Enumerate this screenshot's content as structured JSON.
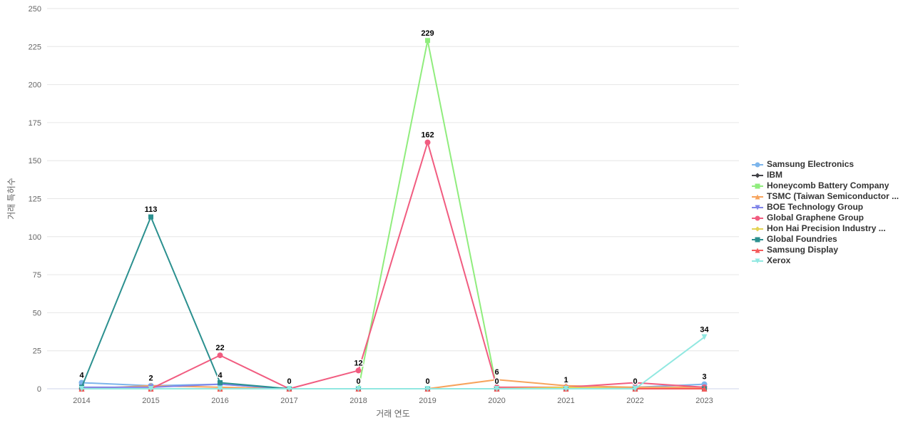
{
  "chart_data": {
    "type": "line",
    "title": "",
    "xlabel": "거래 연도",
    "ylabel": "거래 특허수",
    "x_categories": [
      "2014",
      "2015",
      "2016",
      "2017",
      "2018",
      "2019",
      "2020",
      "2021",
      "2022",
      "2023"
    ],
    "ylim": [
      0,
      250
    ],
    "ytick_step": 25,
    "grid": true,
    "legend_position": "right",
    "series": [
      {
        "name": "Samsung Electronics",
        "color": "#7cb5ec",
        "marker": "circle",
        "values": [
          4,
          2,
          3,
          0,
          0,
          0,
          0,
          0,
          1,
          3
        ]
      },
      {
        "name": "IBM",
        "color": "#434348",
        "marker": "diamond",
        "values": [
          0,
          0,
          0,
          0,
          0,
          0,
          0,
          0,
          0,
          0
        ]
      },
      {
        "name": "Honeycomb Battery Company",
        "color": "#90ed7d",
        "marker": "square",
        "values": [
          0,
          0,
          0,
          0,
          0,
          229,
          0,
          0,
          0,
          0
        ]
      },
      {
        "name": "TSMC (Taiwan Semiconductor ...",
        "color": "#f7a35c",
        "marker": "triangle",
        "values": [
          0,
          2,
          1,
          0,
          0,
          0,
          6,
          2,
          1,
          1
        ]
      },
      {
        "name": "BOE Technology Group",
        "color": "#8085e9",
        "marker": "triangle-down",
        "values": [
          1,
          1,
          3,
          0,
          0,
          0,
          0,
          0,
          0,
          0
        ]
      },
      {
        "name": "Global Graphene Group",
        "color": "#f15c80",
        "marker": "circle",
        "values": [
          0,
          0,
          22,
          0,
          12,
          162,
          1,
          1,
          4,
          1
        ]
      },
      {
        "name": "Hon Hai Precision Industry ...",
        "color": "#e4d354",
        "marker": "diamond",
        "values": [
          0,
          0,
          0,
          0,
          0,
          0,
          0,
          1,
          0,
          0
        ]
      },
      {
        "name": "Global Foundries",
        "color": "#2b908f",
        "marker": "square",
        "values": [
          1,
          113,
          4,
          0,
          0,
          0,
          0,
          0,
          0,
          0
        ]
      },
      {
        "name": "Samsung Display",
        "color": "#f45b5b",
        "marker": "triangle",
        "values": [
          0,
          0,
          0,
          0,
          0,
          0,
          0,
          0,
          0,
          0
        ]
      },
      {
        "name": "Xerox",
        "color": "#91e8e1",
        "marker": "triangle-down",
        "values": [
          0,
          0,
          0,
          0,
          0,
          0,
          0,
          0,
          0,
          34
        ]
      }
    ],
    "point_labels": [
      {
        "year": "2014",
        "value": 4
      },
      {
        "year": "2015",
        "value": 113
      },
      {
        "year": "2015",
        "value": 2
      },
      {
        "year": "2016",
        "value": 22
      },
      {
        "year": "2016",
        "value": 4
      },
      {
        "year": "2017",
        "value": 0
      },
      {
        "year": "2018",
        "value": 12
      },
      {
        "year": "2018",
        "value": 0
      },
      {
        "year": "2019",
        "value": 229
      },
      {
        "year": "2019",
        "value": 162
      },
      {
        "year": "2019",
        "value": 0
      },
      {
        "year": "2020",
        "value": 6
      },
      {
        "year": "2020",
        "value": 0
      },
      {
        "year": "2021",
        "value": 1
      },
      {
        "year": "2022",
        "value": 0
      },
      {
        "year": "2023",
        "value": 34
      },
      {
        "year": "2023",
        "value": 3
      }
    ],
    "colors": {
      "grid": "#e6e6e6",
      "axis_line": "#ccd6eb",
      "tick_label": "#666666",
      "axis_title": "#666666",
      "legend_text": "#333333",
      "data_label": "#000000"
    }
  }
}
